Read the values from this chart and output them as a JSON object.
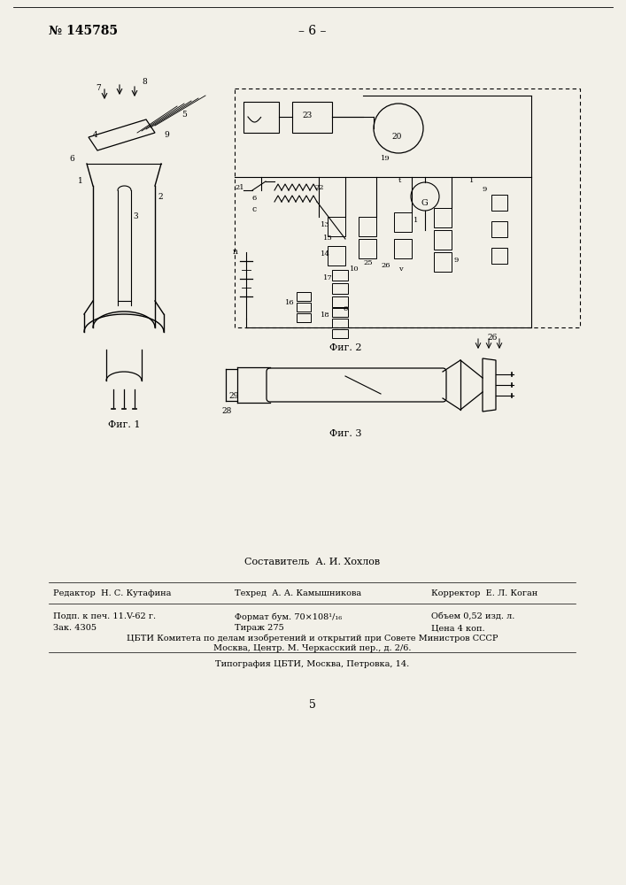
{
  "page_color": "#f2f0e8",
  "header_patent": "№ 145785",
  "header_page": "– 6 –",
  "header_font_size": 10,
  "composer_text": "Составитель  А. И. Хохлов",
  "editor_text": "Редактор  Н. С. Кутафина",
  "techred_text": "Техред  А. А. Камышникова",
  "corrector_text": "Корректор  Е. Л. Коган",
  "line1_col1": "Подп. к печ. 11.V-62 г.",
  "line1_col2": "Формат бум. 70×108¹/₁₆",
  "line1_col3": "Объем 0,52 изд. л.",
  "line2_col1": "Зак. 4305",
  "line2_col2": "Тираж 275",
  "line2_col3": "Цена 4 коп.",
  "line3": "ЦБТИ Комитета по делам изобретений и открытий при Совете Министров СССР",
  "line4": "Москва, Центр. М. Черкасский пер., д. 2/6.",
  "line5": "Типография ЦБТИ, Москва, Петровка, 14.",
  "page_number": "5",
  "small_font_size": 7.0,
  "fig_caption_font": 8,
  "fig1_caption": "Фиг. 1",
  "fig2_caption": "Фиг. 2",
  "fig3_caption": "Фиг. 3"
}
